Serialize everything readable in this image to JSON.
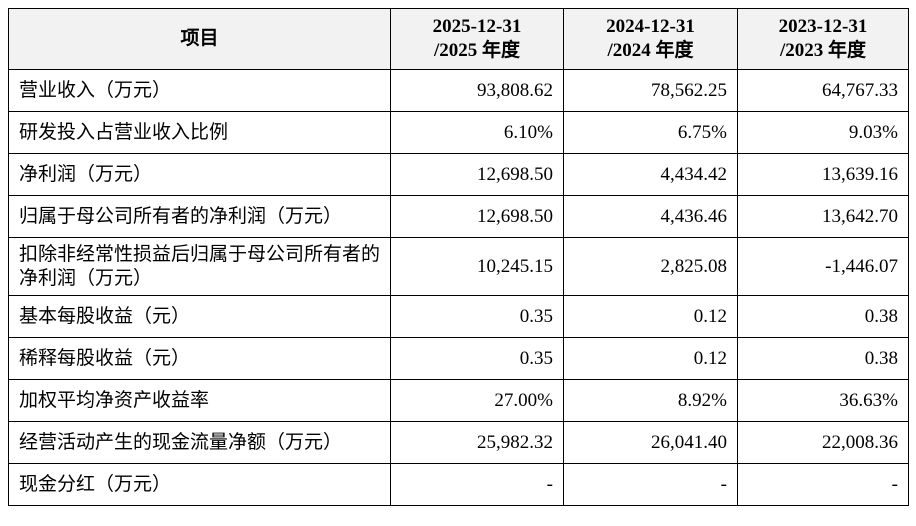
{
  "table": {
    "header": [
      "项目",
      "2025-12-31\n/2025 年度",
      "2024-12-31\n/2024 年度",
      "2023-12-31\n/2023 年度"
    ],
    "rows": [
      [
        "营业收入（万元）",
        "93,808.62",
        "78,562.25",
        "64,767.33"
      ],
      [
        "研发投入占营业收入比例",
        "6.10%",
        "6.75%",
        "9.03%"
      ],
      [
        "净利润（万元）",
        "12,698.50",
        "4,434.42",
        "13,639.16"
      ],
      [
        "归属于母公司所有者的净利润（万元）",
        "12,698.50",
        "4,436.46",
        "13,642.70"
      ],
      [
        "扣除非经常性损益后归属于母公司所有者的净利润（万元）",
        "10,245.15",
        "2,825.08",
        "-1,446.07"
      ],
      [
        "基本每股收益（元）",
        "0.35",
        "0.12",
        "0.38"
      ],
      [
        "稀释每股收益（元）",
        "0.35",
        "0.12",
        "0.38"
      ],
      [
        "加权平均净资产收益率",
        "27.00%",
        "8.92%",
        "36.63%"
      ],
      [
        "经营活动产生的现金流量净额（万元）",
        "25,982.32",
        "26,041.40",
        "22,008.36"
      ],
      [
        "现金分红（万元）",
        "-",
        "-",
        "-"
      ]
    ]
  }
}
